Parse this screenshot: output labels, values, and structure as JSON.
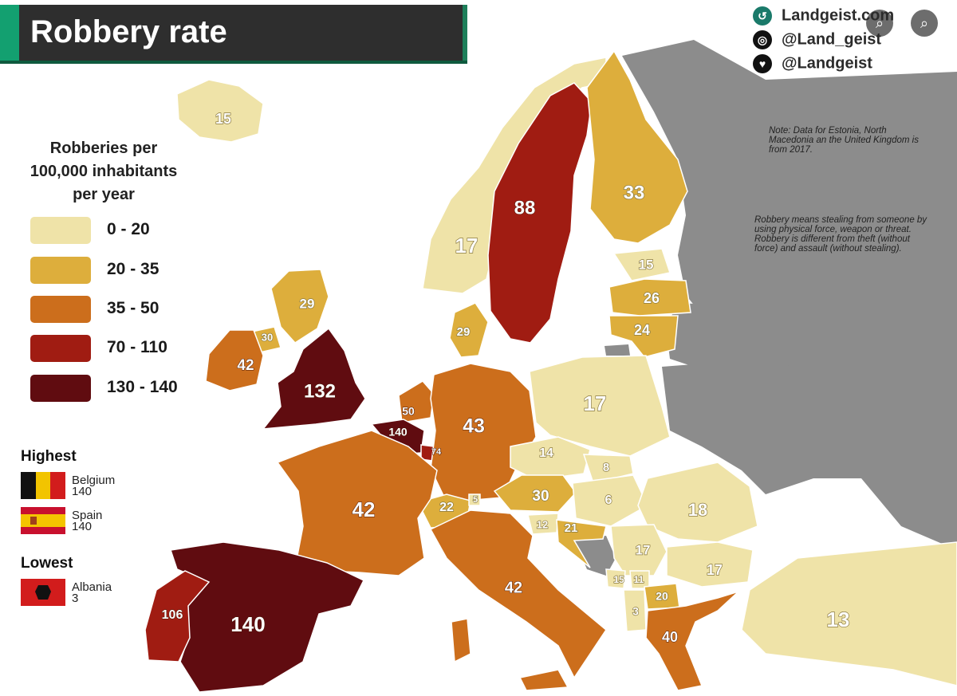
{
  "title": "Robbery rate",
  "legend": {
    "title_lines": [
      "Robberies per",
      "100,000 inhabitants",
      "per year"
    ],
    "classes": [
      {
        "label": "0  - 20",
        "color": "#efe3a8"
      },
      {
        "label": "20 - 35",
        "color": "#ddae3c"
      },
      {
        "label": "35 - 50",
        "color": "#cc6e1c"
      },
      {
        "label": "70  - 110",
        "color": "#a01c12"
      },
      {
        "label": "130 - 140",
        "color": "#600c10"
      }
    ]
  },
  "highest": {
    "heading": "Highest",
    "items": [
      {
        "country": "Belgium",
        "value": "140"
      },
      {
        "country": "Spain",
        "value": "140"
      }
    ]
  },
  "lowest": {
    "heading": "Lowest",
    "items": [
      {
        "country": "Albania",
        "value": "3"
      }
    ]
  },
  "social": {
    "site": "Landgeist.com",
    "instagram": "@Land_geist",
    "twitter": "@Landgeist"
  },
  "notes": {
    "note": "Note: Data for Estonia, North Macedonia an the United Kingdom is from 2017.",
    "definition": "Robbery means stealing from someone by using physical force, weapon or threat. Robbery is different from theft (without force) and assault (without stealing)."
  },
  "map_colors": {
    "sea": "#ffffff",
    "no_data": "#8c8c8c",
    "border": "#ffffff"
  },
  "countries": [
    {
      "name": "Iceland",
      "value": "15",
      "cls": 0
    },
    {
      "name": "Norway",
      "value": "17",
      "cls": 0
    },
    {
      "name": "Sweden",
      "value": "88",
      "cls": 3
    },
    {
      "name": "Finland",
      "value": "33",
      "cls": 1
    },
    {
      "name": "Estonia",
      "value": "15",
      "cls": 0
    },
    {
      "name": "Latvia",
      "value": "26",
      "cls": 1
    },
    {
      "name": "Lithuania",
      "value": "24",
      "cls": 1
    },
    {
      "name": "Denmark",
      "value": "29",
      "cls": 1
    },
    {
      "name": "Scotland",
      "value": "29",
      "cls": 1
    },
    {
      "name": "Northern Ireland",
      "value": "30",
      "cls": 1
    },
    {
      "name": "Ireland",
      "value": "42",
      "cls": 2
    },
    {
      "name": "England & Wales",
      "value": "132",
      "cls": 4
    },
    {
      "name": "Netherlands",
      "value": "50",
      "cls": 2
    },
    {
      "name": "Belgium",
      "value": "140",
      "cls": 4
    },
    {
      "name": "Luxembourg",
      "value": "74",
      "cls": 3
    },
    {
      "name": "Germany",
      "value": "43",
      "cls": 2
    },
    {
      "name": "Poland",
      "value": "17",
      "cls": 0
    },
    {
      "name": "Czechia",
      "value": "14",
      "cls": 0
    },
    {
      "name": "Slovakia",
      "value": "8",
      "cls": 0
    },
    {
      "name": "Austria",
      "value": "30",
      "cls": 1
    },
    {
      "name": "Hungary",
      "value": "6",
      "cls": 0
    },
    {
      "name": "Switzerland",
      "value": "22",
      "cls": 1
    },
    {
      "name": "Liechtenstein",
      "value": "5",
      "cls": 0
    },
    {
      "name": "France",
      "value": "42",
      "cls": 2
    },
    {
      "name": "Slovenia",
      "value": "12",
      "cls": 0
    },
    {
      "name": "Croatia",
      "value": "21",
      "cls": 1
    },
    {
      "name": "Romania",
      "value": "18",
      "cls": 0
    },
    {
      "name": "Serbia",
      "value": "17",
      "cls": 0
    },
    {
      "name": "Bulgaria",
      "value": "17",
      "cls": 0
    },
    {
      "name": "Montenegro",
      "value": "15",
      "cls": 0
    },
    {
      "name": "Kosovo",
      "value": "11",
      "cls": 0
    },
    {
      "name": "North Macedonia",
      "value": "20",
      "cls": 1
    },
    {
      "name": "Albania",
      "value": "3",
      "cls": 0
    },
    {
      "name": "Greece",
      "value": "40",
      "cls": 2
    },
    {
      "name": "Turkey",
      "value": "13",
      "cls": 0
    },
    {
      "name": "Italy",
      "value": "42",
      "cls": 2
    },
    {
      "name": "Spain",
      "value": "140",
      "cls": 4
    },
    {
      "name": "Portugal",
      "value": "106",
      "cls": 3
    }
  ]
}
